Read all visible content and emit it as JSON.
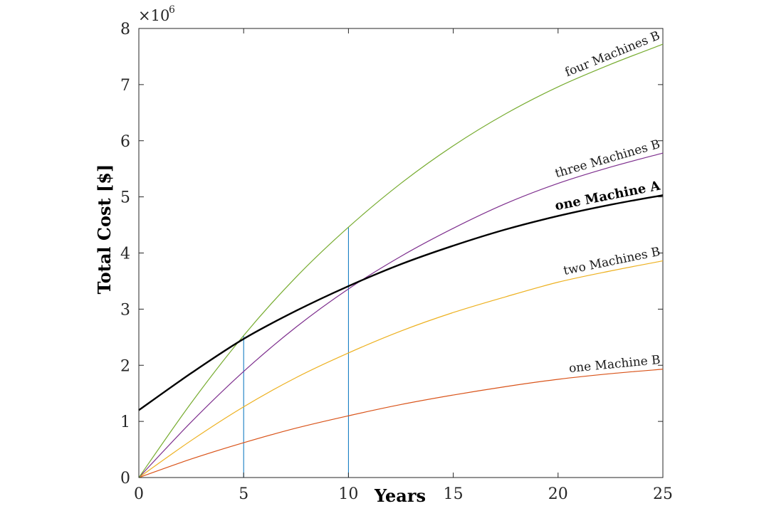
{
  "chart_data": {
    "type": "line",
    "xlabel": "Years",
    "ylabel": "Total Cost [$]",
    "y_exponent_base": "×10",
    "y_exponent_power": "6",
    "xlim": [
      0,
      25
    ],
    "ylim": [
      0,
      8
    ],
    "x_ticks": [
      "0",
      "5",
      "10",
      "15",
      "20",
      "25"
    ],
    "x_tick_values": [
      0,
      5,
      10,
      15,
      20,
      25
    ],
    "y_ticks": [
      "0",
      "1",
      "2",
      "3",
      "4",
      "5",
      "6",
      "7",
      "8"
    ],
    "y_tick_values": [
      0,
      1,
      2,
      3,
      4,
      5,
      6,
      7,
      8
    ],
    "grid": false,
    "box": true,
    "x": [
      0,
      2.5,
      5,
      7.5,
      10,
      12.5,
      15,
      17.5,
      20,
      22.5,
      25
    ],
    "series": [
      {
        "name": "one Machine B",
        "color": "#d95319",
        "bold": false,
        "values": [
          0,
          0.33,
          0.62,
          0.88,
          1.1,
          1.3,
          1.47,
          1.62,
          1.75,
          1.85,
          1.93
        ]
      },
      {
        "name": "two Machines B",
        "color": "#edb120",
        "bold": false,
        "values": [
          0,
          0.66,
          1.26,
          1.78,
          2.22,
          2.61,
          2.94,
          3.22,
          3.48,
          3.68,
          3.86
        ]
      },
      {
        "name": "three Machines B",
        "color": "#7e2f8e",
        "bold": false,
        "values": [
          0,
          0.99,
          1.89,
          2.68,
          3.36,
          3.94,
          4.44,
          4.88,
          5.24,
          5.53,
          5.78
        ]
      },
      {
        "name": "four Machines B",
        "color": "#77ac30",
        "bold": false,
        "values": [
          0,
          1.33,
          2.53,
          3.57,
          4.46,
          5.24,
          5.91,
          6.48,
          6.96,
          7.36,
          7.72
        ]
      },
      {
        "name": "one Machine A",
        "color": "#000000",
        "bold": true,
        "values": [
          1.2,
          1.86,
          2.47,
          2.97,
          3.41,
          3.8,
          4.13,
          4.42,
          4.66,
          4.86,
          5.03
        ]
      }
    ],
    "annotations": [
      {
        "type": "vline",
        "x": 5,
        "y_top": 2.53,
        "color": "#0072bd"
      },
      {
        "type": "vline",
        "x": 10,
        "y_top": 4.46,
        "color": "#0072bd"
      }
    ]
  }
}
